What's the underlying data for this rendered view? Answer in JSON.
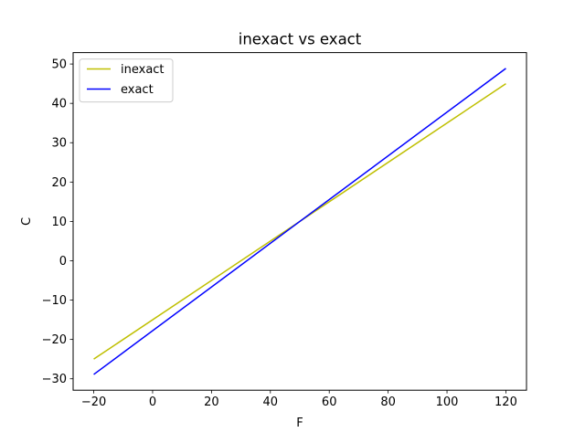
{
  "chart_data": {
    "type": "line",
    "title": "inexact vs exact",
    "xlabel": "F",
    "ylabel": "C",
    "xlim": [
      -27,
      127
    ],
    "ylim": [
      -32.9,
      52.9
    ],
    "x_ticks": [
      -20,
      0,
      20,
      40,
      60,
      80,
      100,
      120
    ],
    "x_tick_labels": [
      "−20",
      "0",
      "20",
      "40",
      "60",
      "80",
      "100",
      "120"
    ],
    "y_ticks": [
      -30,
      -20,
      -10,
      0,
      10,
      20,
      30,
      40,
      50
    ],
    "y_tick_labels": [
      "−30",
      "−20",
      "−10",
      "0",
      "10",
      "20",
      "30",
      "40",
      "50"
    ],
    "grid": false,
    "legend_position": "top-left",
    "series": [
      {
        "name": "inexact",
        "color": "#bfbf00",
        "x": [
          -20,
          120
        ],
        "y": [
          -25,
          45
        ]
      },
      {
        "name": "exact",
        "color": "#0000ff",
        "x": [
          -20,
          120
        ],
        "y": [
          -28.89,
          48.89
        ]
      }
    ]
  }
}
